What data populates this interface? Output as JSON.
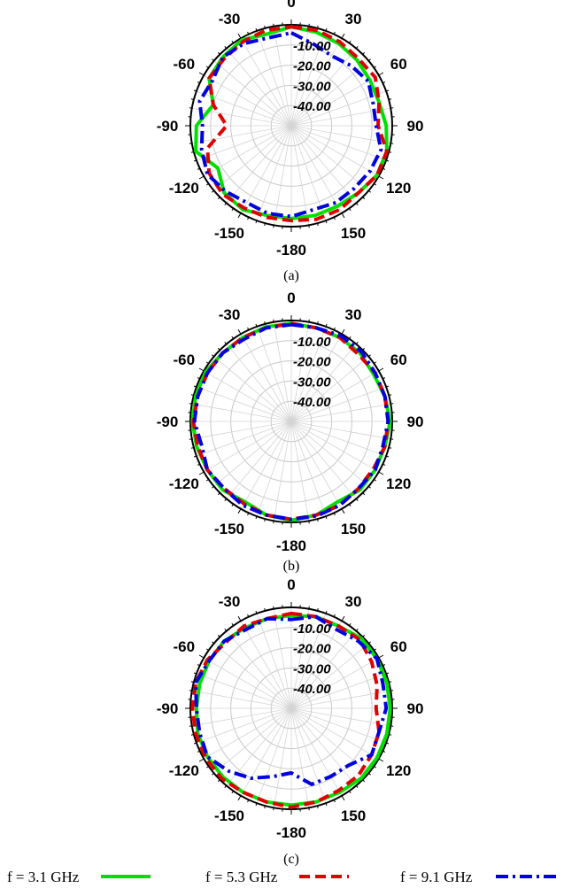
{
  "chart_data": [
    {
      "type": "polar",
      "caption": "(a)",
      "radial_labels": [
        "-10.00",
        "-20.00",
        "-30.00",
        "-40.00"
      ],
      "angle_labels": [
        "0",
        "30",
        "60",
        "90",
        "120",
        "150",
        "-180",
        "-150",
        "-120",
        "-90",
        "-60",
        "-30"
      ],
      "rlim": [
        -50,
        0
      ],
      "grid": true,
      "angles": [
        0,
        15,
        30,
        45,
        60,
        75,
        90,
        105,
        120,
        135,
        150,
        165,
        180,
        195,
        210,
        225,
        240,
        255,
        270,
        285,
        300,
        315,
        330,
        345
      ],
      "series": [
        {
          "name": "f = 3.1 GHz",
          "values": [
            -1,
            -2,
            -3,
            -4,
            -5,
            -5,
            -3,
            -1,
            -1,
            -3,
            -4,
            -4,
            -4,
            -4,
            -2,
            -3,
            -8,
            -1,
            -3,
            -10,
            -3,
            -2,
            -1,
            -3
          ]
        },
        {
          "name": "f = 5.3 GHz",
          "values": [
            -1,
            -1,
            -2,
            -3,
            -2,
            -5,
            -7,
            -1,
            -1,
            -3,
            -2,
            -2,
            -3,
            -3,
            -3,
            -2,
            -3,
            -7,
            -18,
            -10,
            -3,
            -3,
            -2,
            -1
          ]
        },
        {
          "name": "f = 9.1 GHz",
          "values": [
            -4,
            -8,
            -10,
            -8,
            -6,
            -8,
            -8,
            -4,
            -5,
            -6,
            -6,
            -7,
            -5,
            -5,
            -6,
            -4,
            -2,
            -4,
            -6,
            -3,
            -5,
            -2,
            -3,
            -5
          ]
        }
      ]
    },
    {
      "type": "polar",
      "caption": "(b)",
      "radial_labels": [
        "-10.00",
        "-20.00",
        "-30.00",
        "-40.00"
      ],
      "angle_labels": [
        "0",
        "30",
        "60",
        "90",
        "120",
        "150",
        "-180",
        "-150",
        "-120",
        "-90",
        "-60",
        "-30"
      ],
      "rlim": [
        -50,
        0
      ],
      "grid": true,
      "angles": [
        0,
        15,
        30,
        45,
        60,
        75,
        90,
        105,
        120,
        135,
        150,
        165,
        180,
        195,
        210,
        225,
        240,
        255,
        270,
        285,
        300,
        315,
        330,
        345
      ],
      "series": [
        {
          "name": "f = 3.1 GHz",
          "values": [
            -1.5,
            -2,
            -2,
            -2,
            -3,
            -2,
            -1,
            -2,
            -2,
            -2,
            -4,
            -2,
            -1,
            -2,
            -4,
            -2,
            -2,
            -1.5,
            -1,
            -1,
            -1,
            -2,
            -2,
            -1.5
          ]
        },
        {
          "name": "f = 5.3 GHz",
          "values": [
            -1.5,
            -2,
            -2,
            -3,
            -2,
            -2,
            -2,
            -2,
            -3,
            -3,
            -2,
            -2,
            -1.5,
            -2,
            -3,
            -3,
            -2,
            -2,
            -1.5,
            -2,
            -2,
            -2,
            -2,
            -2
          ]
        },
        {
          "name": "f = 9.1 GHz",
          "values": [
            -2,
            -2,
            -1,
            -1,
            -2,
            -2,
            -2,
            -3,
            -2,
            -3,
            -2,
            -1.5,
            -1.5,
            -2,
            -2,
            -3,
            -2,
            -4,
            -2,
            -2,
            -2,
            -2,
            -3,
            -2
          ]
        }
      ]
    },
    {
      "type": "polar",
      "caption": "(c)",
      "radial_labels": [
        "-10.00",
        "-20.00",
        "-30.00",
        "-40.00"
      ],
      "angle_labels": [
        "0",
        "30",
        "60",
        "90",
        "120",
        "150",
        "-180",
        "-150",
        "-120",
        "-90",
        "-60",
        "-30"
      ],
      "rlim": [
        -50,
        0
      ],
      "grid": true,
      "angles": [
        0,
        15,
        30,
        45,
        60,
        75,
        90,
        105,
        120,
        135,
        150,
        165,
        180,
        195,
        210,
        225,
        240,
        255,
        270,
        285,
        300,
        315,
        330,
        345
      ],
      "series": [
        {
          "name": "f = 3.1 GHz",
          "values": [
            -4,
            -3,
            -3,
            -1,
            -1,
            -1,
            -1,
            -1,
            -1,
            -1,
            -2,
            -2,
            -2,
            -2,
            -2,
            -2,
            -2,
            -2,
            -3,
            -3,
            -3,
            -3,
            -4,
            -4
          ]
        },
        {
          "name": "f = 5.3 GHz",
          "values": [
            -3,
            -3,
            -3,
            -2,
            -4,
            -6,
            -8,
            -5,
            -4,
            -3,
            -3,
            -2,
            -1,
            -2,
            -2,
            -1,
            -1,
            -1,
            -1,
            -1,
            -2,
            -4,
            -3,
            -4
          ]
        },
        {
          "name": "f = 9.1 GHz",
          "values": [
            -6,
            -3,
            -5,
            -3,
            -1,
            -3,
            -3,
            -5,
            -4,
            -10,
            -11,
            -11,
            -18,
            -15,
            -10,
            -6,
            -2,
            -3,
            -3,
            -1,
            -3,
            -3,
            -5,
            -4
          ]
        }
      ]
    }
  ],
  "legend": {
    "entries": [
      {
        "label": "f = 3.1 GHz",
        "color": "#00e000",
        "style": "solid"
      },
      {
        "label": "f = 5.3 GHz",
        "color": "#e00000",
        "style": "dashed"
      },
      {
        "label": "f = 9.1 GHz",
        "color": "#0000e0",
        "style": "dashdot"
      }
    ]
  }
}
